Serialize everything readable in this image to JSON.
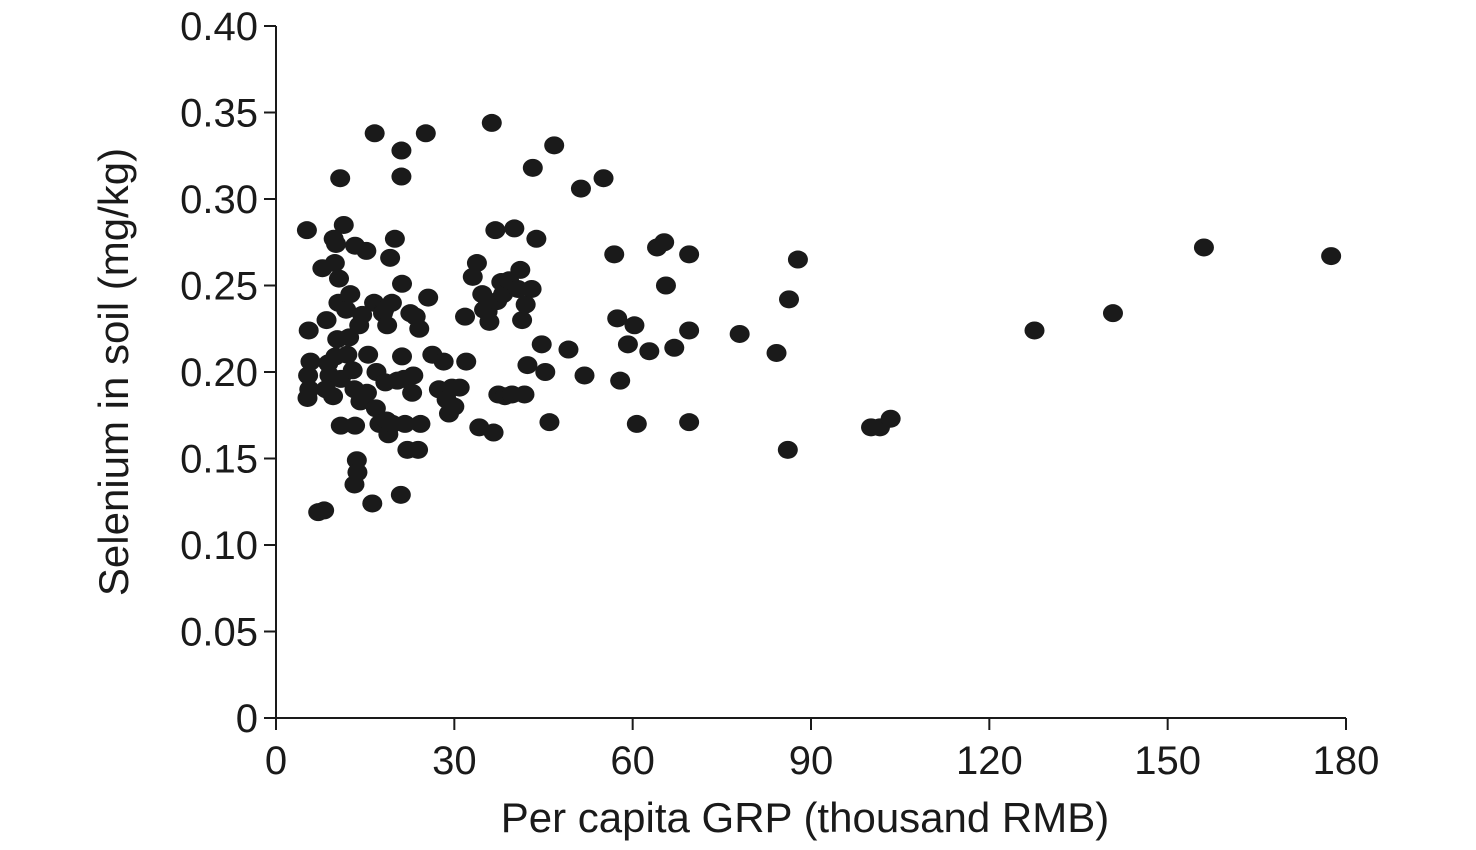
{
  "chart_data": {
    "type": "scatter",
    "title": "",
    "xlabel": "Per capita GRP (thousand RMB)",
    "ylabel": "Selenium in soil (mg/kg)",
    "xlim": [
      0,
      180
    ],
    "ylim": [
      0,
      0.4
    ],
    "xticks": [
      0,
      30,
      60,
      90,
      120,
      150,
      180
    ],
    "xtick_labels": [
      "0",
      "30",
      "60",
      "90",
      "120",
      "150",
      "180"
    ],
    "yticks": [
      0,
      0.05,
      0.1,
      0.15,
      0.2,
      0.25,
      0.3,
      0.35,
      0.4
    ],
    "ytick_labels": [
      "0",
      "0.05",
      "0.10",
      "0.15",
      "0.20",
      "0.25",
      "0.30",
      "0.35",
      "0.40"
    ],
    "grid": false,
    "marker_color": "#1a1a1a",
    "points": [
      [
        5.2,
        0.282
      ],
      [
        5.5,
        0.224
      ],
      [
        5.8,
        0.206
      ],
      [
        5.4,
        0.198
      ],
      [
        5.6,
        0.19
      ],
      [
        5.3,
        0.185
      ],
      [
        7.1,
        0.119
      ],
      [
        8.1,
        0.12
      ],
      [
        7.8,
        0.26
      ],
      [
        8.5,
        0.23
      ],
      [
        8.8,
        0.205
      ],
      [
        9.0,
        0.198
      ],
      [
        8.4,
        0.19
      ],
      [
        9.6,
        0.186
      ],
      [
        10.0,
        0.209
      ],
      [
        9.7,
        0.277
      ],
      [
        9.9,
        0.263
      ],
      [
        10.1,
        0.274
      ],
      [
        10.5,
        0.24
      ],
      [
        10.3,
        0.219
      ],
      [
        10.8,
        0.312
      ],
      [
        10.6,
        0.254
      ],
      [
        10.9,
        0.196
      ],
      [
        10.9,
        0.169
      ],
      [
        11.4,
        0.285
      ],
      [
        11.8,
        0.236
      ],
      [
        12.0,
        0.21
      ],
      [
        12.3,
        0.22
      ],
      [
        12.5,
        0.245
      ],
      [
        12.9,
        0.201
      ],
      [
        13.2,
        0.19
      ],
      [
        13.2,
        0.135
      ],
      [
        13.3,
        0.169
      ],
      [
        13.3,
        0.273
      ],
      [
        13.6,
        0.149
      ],
      [
        13.7,
        0.142
      ],
      [
        14.0,
        0.227
      ],
      [
        14.2,
        0.183
      ],
      [
        14.5,
        0.233
      ],
      [
        15.2,
        0.27
      ],
      [
        15.5,
        0.21
      ],
      [
        15.3,
        0.188
      ],
      [
        16.2,
        0.124
      ],
      [
        16.6,
        0.338
      ],
      [
        16.5,
        0.24
      ],
      [
        16.9,
        0.2
      ],
      [
        16.8,
        0.179
      ],
      [
        17.4,
        0.17
      ],
      [
        18.2,
        0.236
      ],
      [
        18.0,
        0.234
      ],
      [
        18.7,
        0.227
      ],
      [
        18.4,
        0.194
      ],
      [
        18.6,
        0.172
      ],
      [
        18.9,
        0.164
      ],
      [
        19.2,
        0.266
      ],
      [
        19.5,
        0.24
      ],
      [
        19.6,
        0.17
      ],
      [
        20.0,
        0.277
      ],
      [
        20.4,
        0.195
      ],
      [
        21.0,
        0.129
      ],
      [
        21.1,
        0.328
      ],
      [
        21.1,
        0.313
      ],
      [
        21.2,
        0.251
      ],
      [
        21.2,
        0.209
      ],
      [
        21.5,
        0.196
      ],
      [
        21.7,
        0.17
      ],
      [
        22.1,
        0.155
      ],
      [
        22.6,
        0.234
      ],
      [
        22.9,
        0.188
      ],
      [
        23.1,
        0.198
      ],
      [
        23.5,
        0.232
      ],
      [
        23.9,
        0.155
      ],
      [
        24.1,
        0.225
      ],
      [
        24.3,
        0.17
      ],
      [
        25.2,
        0.338
      ],
      [
        25.6,
        0.243
      ],
      [
        26.3,
        0.21
      ],
      [
        27.4,
        0.19
      ],
      [
        28.2,
        0.206
      ],
      [
        28.7,
        0.184
      ],
      [
        29.1,
        0.176
      ],
      [
        29.6,
        0.191
      ],
      [
        30.0,
        0.18
      ],
      [
        30.9,
        0.191
      ],
      [
        31.8,
        0.232
      ],
      [
        32.0,
        0.206
      ],
      [
        33.1,
        0.255
      ],
      [
        33.8,
        0.263
      ],
      [
        34.2,
        0.168
      ],
      [
        34.7,
        0.245
      ],
      [
        35.0,
        0.236
      ],
      [
        35.6,
        0.235
      ],
      [
        35.9,
        0.229
      ],
      [
        36.3,
        0.344
      ],
      [
        36.6,
        0.165
      ],
      [
        36.9,
        0.282
      ],
      [
        37.2,
        0.241
      ],
      [
        37.4,
        0.187
      ],
      [
        37.9,
        0.252
      ],
      [
        38.2,
        0.245
      ],
      [
        38.5,
        0.186
      ],
      [
        39.2,
        0.253
      ],
      [
        39.7,
        0.187
      ],
      [
        40.1,
        0.283
      ],
      [
        40.7,
        0.248
      ],
      [
        41.1,
        0.259
      ],
      [
        41.4,
        0.23
      ],
      [
        41.8,
        0.187
      ],
      [
        42.0,
        0.239
      ],
      [
        42.3,
        0.204
      ],
      [
        43.0,
        0.248
      ],
      [
        43.2,
        0.318
      ],
      [
        43.8,
        0.277
      ],
      [
        44.7,
        0.216
      ],
      [
        45.3,
        0.2
      ],
      [
        46.0,
        0.171
      ],
      [
        46.8,
        0.331
      ],
      [
        49.2,
        0.213
      ],
      [
        51.3,
        0.306
      ],
      [
        51.9,
        0.198
      ],
      [
        55.1,
        0.312
      ],
      [
        56.9,
        0.268
      ],
      [
        57.4,
        0.231
      ],
      [
        57.9,
        0.195
      ],
      [
        59.2,
        0.216
      ],
      [
        60.3,
        0.227
      ],
      [
        60.7,
        0.17
      ],
      [
        62.8,
        0.212
      ],
      [
        64.1,
        0.272
      ],
      [
        65.3,
        0.275
      ],
      [
        65.6,
        0.25
      ],
      [
        67.0,
        0.214
      ],
      [
        69.5,
        0.268
      ],
      [
        69.5,
        0.224
      ],
      [
        69.5,
        0.171
      ],
      [
        78.0,
        0.222
      ],
      [
        84.2,
        0.211
      ],
      [
        86.1,
        0.155
      ],
      [
        86.3,
        0.242
      ],
      [
        87.8,
        0.265
      ],
      [
        100.1,
        0.168
      ],
      [
        101.6,
        0.168
      ],
      [
        103.4,
        0.173
      ],
      [
        127.6,
        0.224
      ],
      [
        140.8,
        0.234
      ],
      [
        156.1,
        0.272
      ],
      [
        177.5,
        0.267
      ]
    ]
  }
}
